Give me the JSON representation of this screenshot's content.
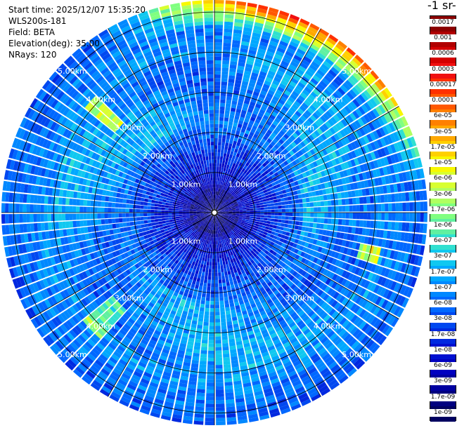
{
  "header": {
    "start_time": "Start time: 2025/12/07 15:35:20",
    "instrument": "WLS200s-181",
    "field": "Field: BETA",
    "elevation": "Elevation(deg): 35.00",
    "nrays": "NRays: 120"
  },
  "colorbar": {
    "unit_label": "-1 sr-",
    "labels": [
      "0.0017",
      "0.001",
      "0.0006",
      "0.0003",
      "0.00017",
      "0.0001",
      "6e-05",
      "3e-05",
      "1.7e-05",
      "1e-05",
      "6e-06",
      "3e-06",
      "1.7e-06",
      "1e-06",
      "6e-07",
      "3e-07",
      "1.7e-07",
      "1e-07",
      "6e-08",
      "3e-08",
      "1.7e-08",
      "1e-08",
      "6e-09",
      "3e-09",
      "1.7e-09",
      "1e-09"
    ],
    "colors": [
      "#8b0000",
      "#b00000",
      "#d40000",
      "#f01010",
      "#ff3000",
      "#ff5800",
      "#ff8000",
      "#ffa800",
      "#ffd000",
      "#f8f800",
      "#d8ff30",
      "#b0ff60",
      "#80ff80",
      "#60f0a0",
      "#30e0d0",
      "#10c8f0",
      "#00a8ff",
      "#0088ff",
      "#0068ff",
      "#0048f0",
      "#0028e0",
      "#0010d0",
      "#0000c0",
      "#0000a0",
      "#000080",
      "#000060"
    ]
  },
  "chart_data": {
    "type": "heatmap",
    "description_free": true,
    "n_rays": 120,
    "range_rings_km": [
      1,
      2,
      3,
      4,
      5
    ],
    "ring_label_text": [
      "1.00km",
      "2.00km",
      "3.00km",
      "4.00km",
      "5.00km"
    ],
    "max_range_km": 5.3,
    "grid": true
  }
}
